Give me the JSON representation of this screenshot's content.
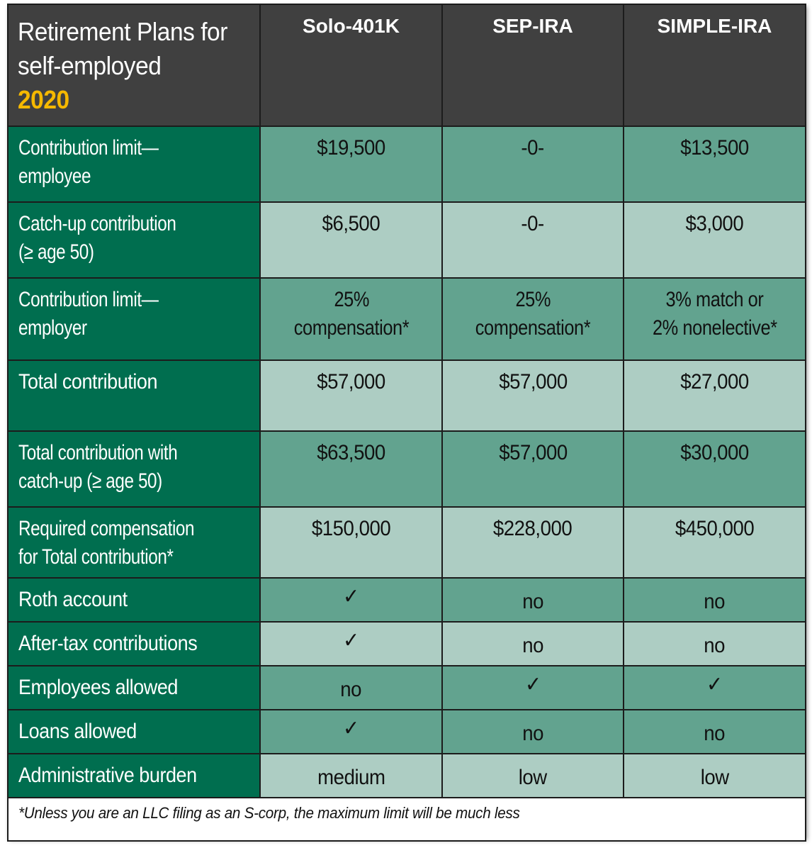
{
  "header": {
    "title_line1": "Retirement Plans for",
    "title_line2": "self-employed",
    "year": "2020",
    "plans": [
      "Solo-401K",
      "SEP-IRA",
      "SIMPLE-IRA"
    ]
  },
  "rows": [
    {
      "label_1": "Contribution limit—",
      "label_2": "employee",
      "values": [
        "$19,500",
        "-0-",
        "$13,500"
      ]
    },
    {
      "label_1": "Catch-up contribution",
      "label_2": "(≥ age 50)",
      "values": [
        "$6,500",
        "-0-",
        "$3,000"
      ]
    },
    {
      "label_1": "Contribution limit—",
      "label_2": "employer",
      "values_1": [
        "25%",
        "25%",
        "3% match or"
      ],
      "values_2": [
        "compensation*",
        "compensation*",
        "2% nonelective*"
      ]
    },
    {
      "label_1": "Total contribution",
      "values": [
        "$57,000",
        "$57,000",
        "$27,000"
      ]
    },
    {
      "label_1": "Total contribution with",
      "label_2": "catch-up (≥ age 50)",
      "values": [
        "$63,500",
        "$57,000",
        "$30,000"
      ]
    },
    {
      "label_1": "Required compensation",
      "label_2": "for Total contribution*",
      "values": [
        "$150,000",
        "$228,000",
        "$450,000"
      ]
    },
    {
      "label_1": "Roth account",
      "values": [
        "✓",
        "no",
        "no"
      ]
    },
    {
      "label_1": "After-tax contributions",
      "values": [
        "✓",
        "no",
        "no"
      ]
    },
    {
      "label_1": "Employees allowed",
      "values": [
        "no",
        "✓",
        "✓"
      ]
    },
    {
      "label_1": "Loans allowed",
      "values": [
        "✓",
        "no",
        "no"
      ]
    },
    {
      "label_1": "Administrative burden",
      "values": [
        "medium",
        "low",
        "low"
      ]
    }
  ],
  "footnote": "*Unless you are an LLC filing as an S-corp, the maximum limit will be much less",
  "colors": {
    "header_bg": "#404040",
    "year": "#f5b800",
    "label_bg": "#006e4f",
    "cell_dark": "#62a38f",
    "cell_light": "#adcdc3"
  }
}
